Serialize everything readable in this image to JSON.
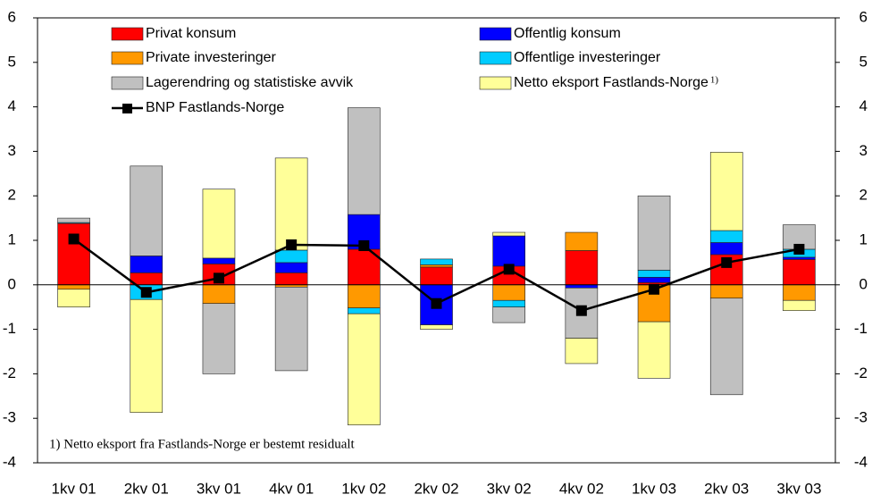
{
  "chart_data": {
    "type": "stacked_bar_line",
    "categories": [
      "1kv 01",
      "2kv 01",
      "3kv 01",
      "4kv 01",
      "1kv 02",
      "2kv 02",
      "3kv 02",
      "4kv 02",
      "1kv 03",
      "2kv 03",
      "3kv 03"
    ],
    "series": [
      {
        "name": "Privat konsum",
        "color": "#ff0000",
        "values": [
          1.38,
          0.27,
          0.47,
          0.27,
          0.8,
          0.4,
          0.42,
          0.77,
          0.05,
          0.68,
          0.57
        ]
      },
      {
        "name": "Offentlig konsum",
        "color": "#0000ff",
        "values": [
          0,
          0.38,
          0.13,
          0.23,
          0.78,
          -0.9,
          0.68,
          -0.07,
          0.12,
          0.27,
          0.05
        ]
      },
      {
        "name": "Private investeringer",
        "color": "#ff9900",
        "values": [
          -0.1,
          0,
          -0.42,
          -0.05,
          -0.52,
          0.05,
          -0.35,
          0.41,
          -0.83,
          -0.3,
          -0.35
        ]
      },
      {
        "name": "Offentlige investeringer",
        "color": "#00ccff",
        "values": [
          0.02,
          -0.33,
          0,
          0.28,
          -0.13,
          0.13,
          -0.15,
          0,
          0.16,
          0.27,
          0.18
        ]
      },
      {
        "name": "Lagerendring og statistiske avvik",
        "color": "#c0c0c0",
        "values": [
          0.1,
          2.02,
          -1.58,
          -1.88,
          2.4,
          0,
          -0.35,
          -1.13,
          1.67,
          -2.17,
          0.55
        ]
      },
      {
        "name": "Netto eksport Fastlands-Norge",
        "color": "#ffff99",
        "values": [
          -0.4,
          -2.54,
          1.55,
          2.07,
          -2.5,
          -0.1,
          0.08,
          -0.57,
          -1.27,
          1.76,
          -0.23
        ]
      },
      {
        "name": "BNP Fastlands-Norge",
        "color": "#000000",
        "line": true,
        "values": [
          1.03,
          -0.17,
          0.15,
          0.9,
          0.88,
          -0.42,
          0.35,
          -0.58,
          -0.1,
          0.5,
          0.8
        ]
      }
    ],
    "legend_note": "1)",
    "footnote": "1) Netto eksport fra Fastlands-Norge er bestemt residualt",
    "ylim": [
      -4,
      6
    ],
    "yticks": [
      -4,
      -3,
      -2,
      -1,
      0,
      1,
      2,
      3,
      4,
      5,
      6
    ],
    "y2lim": [
      -4,
      6
    ],
    "y2ticks": [
      -4,
      -3,
      -2,
      -1,
      0,
      1,
      2,
      3,
      4,
      5,
      6
    ]
  }
}
